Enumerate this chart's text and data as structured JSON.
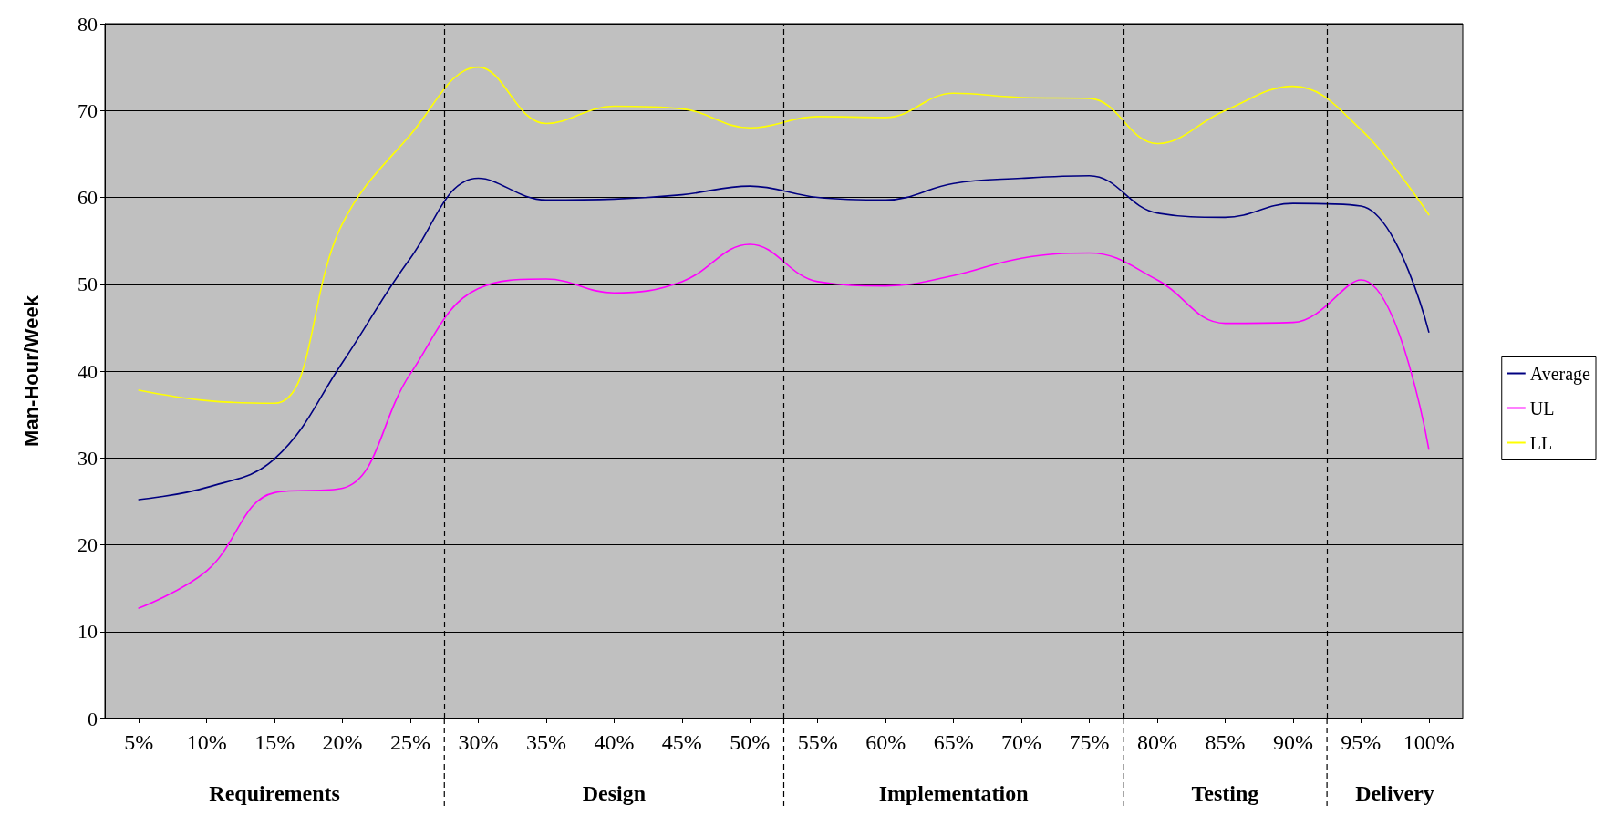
{
  "chart_data": {
    "type": "line",
    "ylabel": "Man-Hour/Week",
    "x": [
      5,
      10,
      15,
      20,
      25,
      30,
      35,
      40,
      45,
      50,
      55,
      60,
      65,
      70,
      75,
      80,
      85,
      90,
      95,
      100
    ],
    "series": [
      {
        "name": "Average",
        "color": "#000080",
        "values": [
          25.2,
          26.6,
          29.9,
          41,
          53,
          62.2,
          59.7,
          59.8,
          60.3,
          61.3,
          60,
          59.7,
          61.6,
          62.2,
          62.5,
          58.2,
          57.7,
          59.3,
          59,
          44.5
        ]
      },
      {
        "name": "UL",
        "color": "#ff00ff",
        "values": [
          12.7,
          17,
          26,
          26.5,
          39.7,
          49.5,
          50.6,
          49,
          50.3,
          54.6,
          50.3,
          49.8,
          51,
          53,
          53.6,
          50.5,
          45.5,
          45.6,
          50.5,
          31
        ]
      },
      {
        "name": "LL",
        "color": "#ffff00",
        "values": [
          37.8,
          36.6,
          36.3,
          57,
          67.2,
          75,
          68.5,
          70.5,
          70.2,
          68,
          69.3,
          69.2,
          72,
          71.5,
          71.4,
          66.2,
          70,
          72.8,
          67.8,
          58
        ]
      }
    ],
    "xlim": [
      2.5,
      102.5
    ],
    "xticks": [
      {
        "value": 5,
        "label": "5%"
      },
      {
        "value": 10,
        "label": "10%"
      },
      {
        "value": 15,
        "label": "15%"
      },
      {
        "value": 20,
        "label": "20%"
      },
      {
        "value": 25,
        "label": "25%"
      },
      {
        "value": 30,
        "label": "30%"
      },
      {
        "value": 35,
        "label": "35%"
      },
      {
        "value": 40,
        "label": "40%"
      },
      {
        "value": 45,
        "label": "45%"
      },
      {
        "value": 50,
        "label": "50%"
      },
      {
        "value": 55,
        "label": "55%"
      },
      {
        "value": 60,
        "label": "60%"
      },
      {
        "value": 65,
        "label": "65%"
      },
      {
        "value": 70,
        "label": "70%"
      },
      {
        "value": 75,
        "label": "75%"
      },
      {
        "value": 80,
        "label": "80%"
      },
      {
        "value": 85,
        "label": "85%"
      },
      {
        "value": 90,
        "label": "90%"
      },
      {
        "value": 95,
        "label": "95%"
      },
      {
        "value": 100,
        "label": "100%"
      }
    ],
    "ylim": [
      0,
      80
    ],
    "yticks": [
      0,
      10,
      20,
      30,
      40,
      50,
      60,
      70,
      80
    ],
    "grid": "y",
    "legend": "right",
    "marker": "none",
    "line_style": "solid",
    "ref_lines": [
      {
        "axis": "x",
        "value": 27.5,
        "line_style": "dashed"
      },
      {
        "axis": "x",
        "value": 52.5,
        "line_style": "dashed"
      },
      {
        "axis": "x",
        "value": 77.5,
        "line_style": "dashed"
      },
      {
        "axis": "x",
        "value": 92.5,
        "line_style": "dashed"
      }
    ],
    "annotations": [
      "Requirements",
      "Design",
      "Implementation",
      "Testing",
      "Delivery"
    ]
  }
}
